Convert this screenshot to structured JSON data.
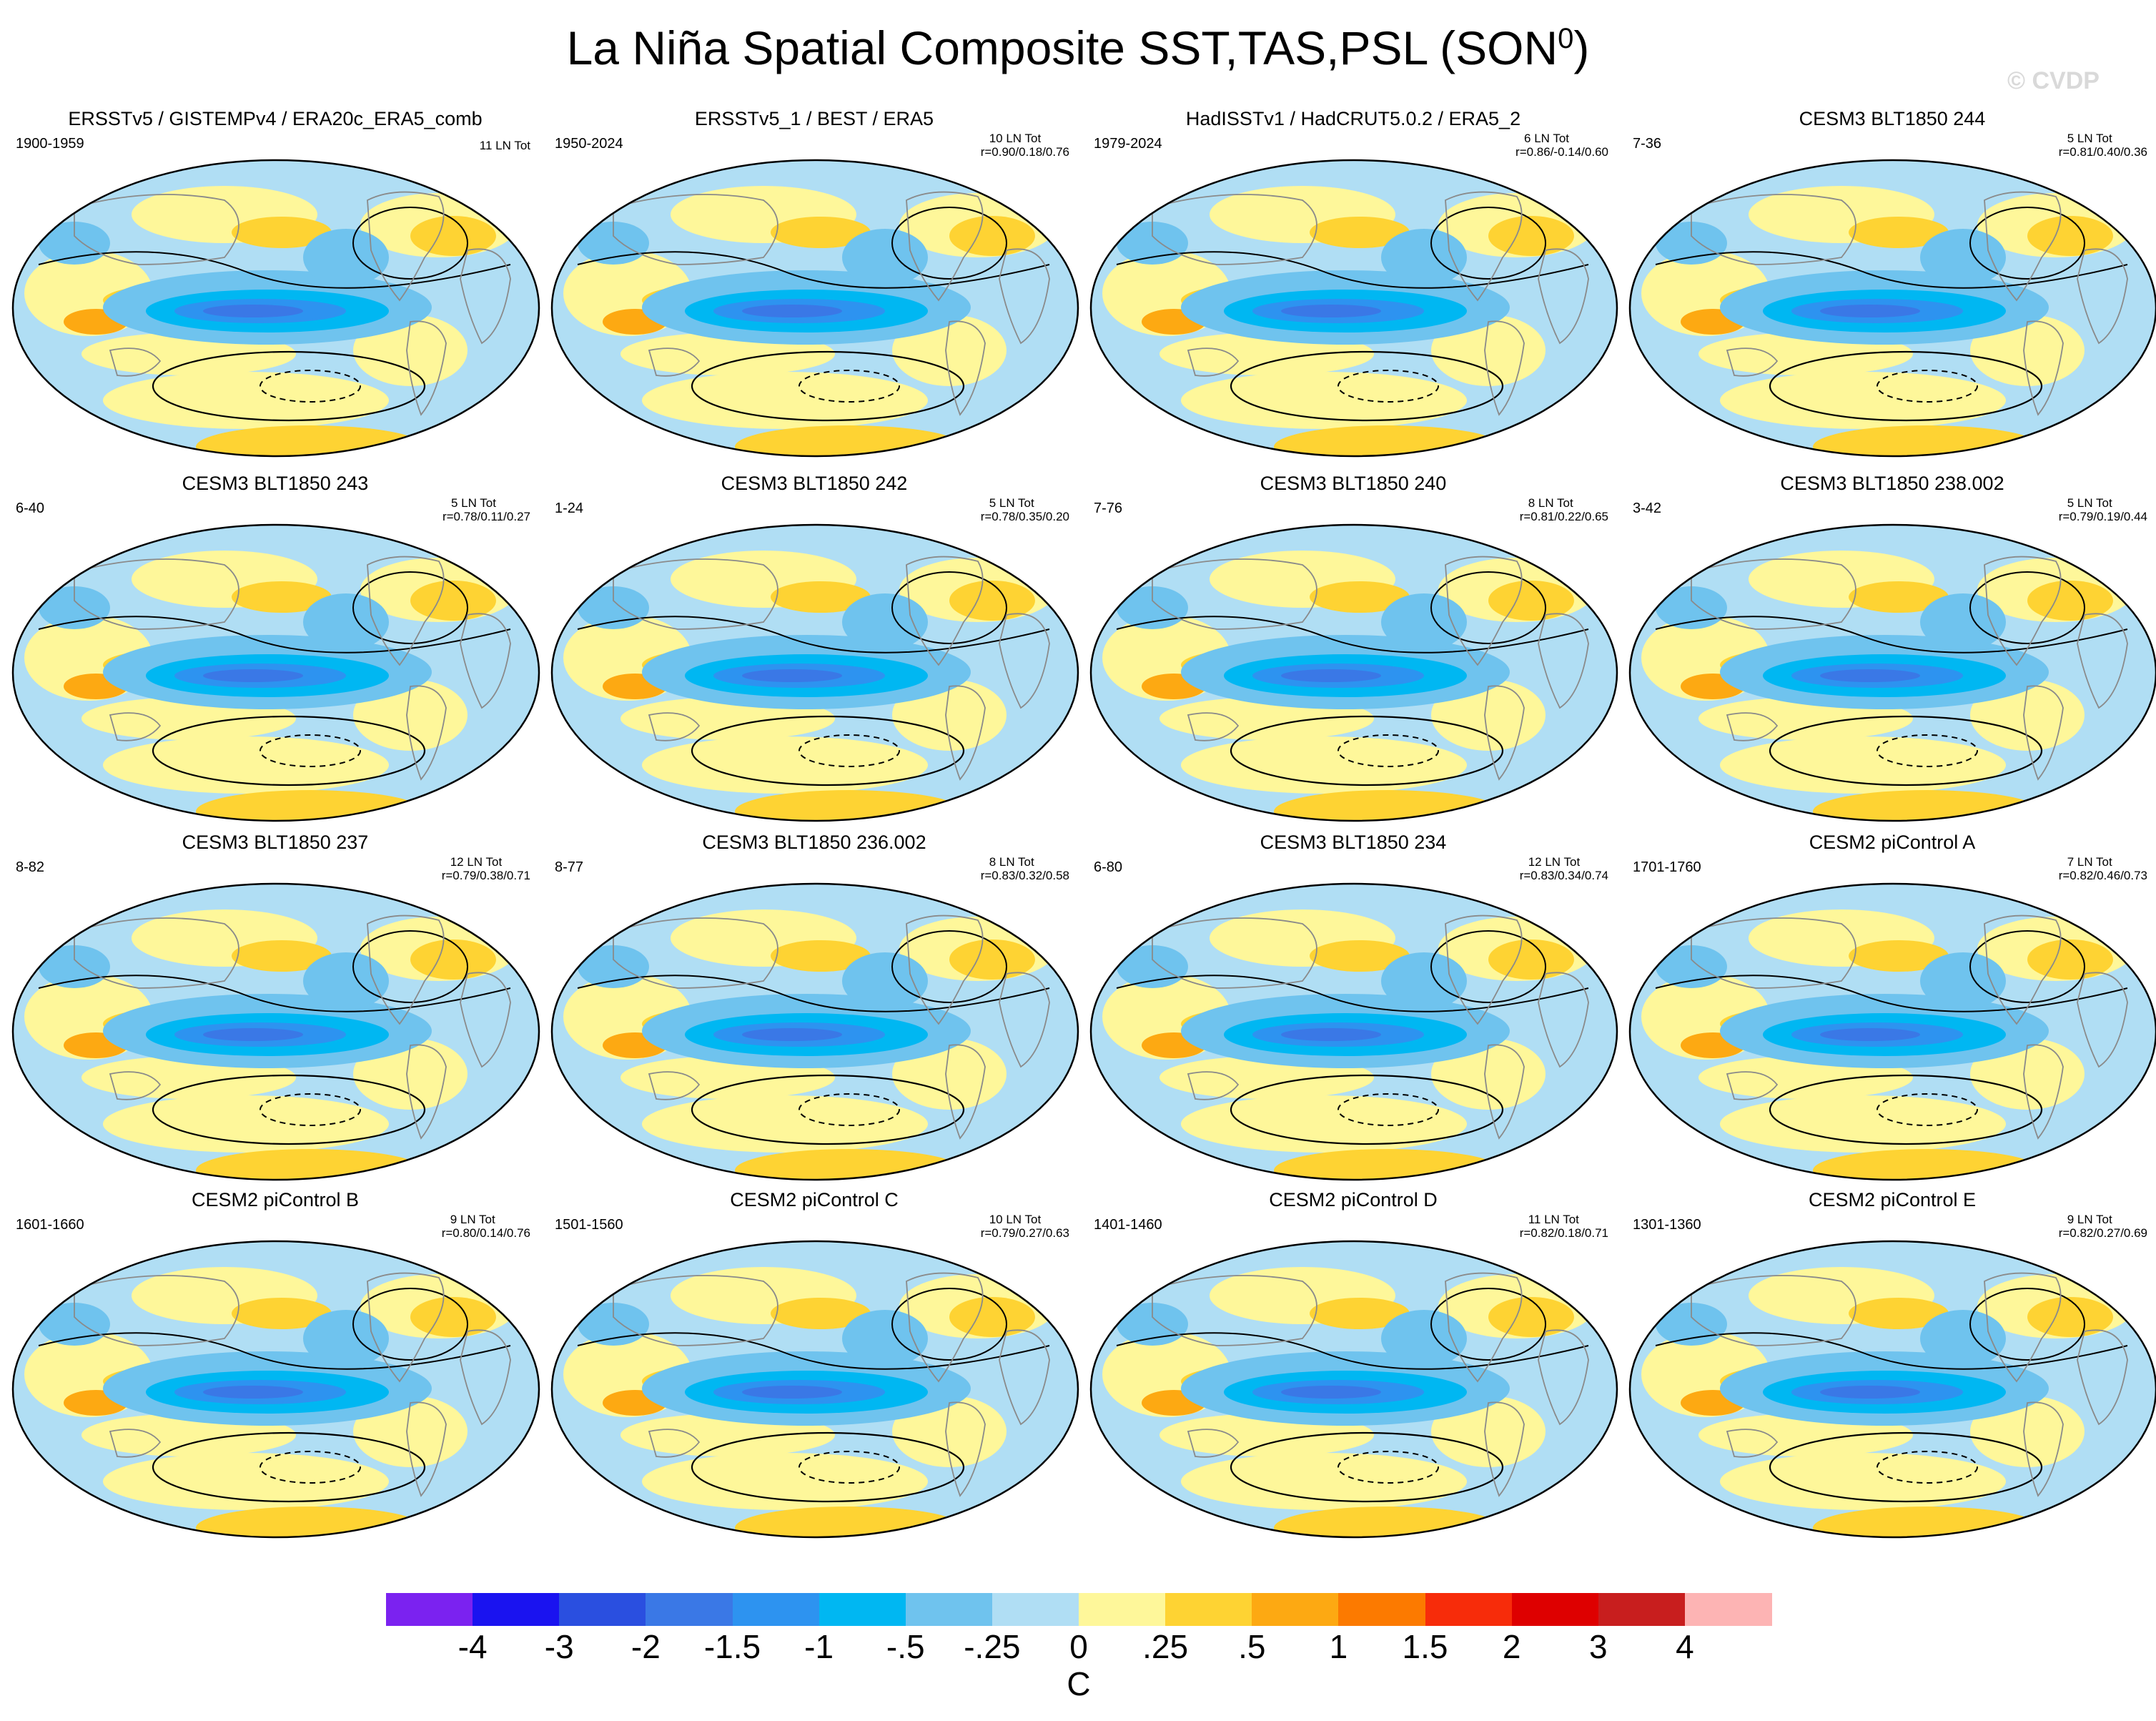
{
  "title_text": "La Niña Spatial Composite SST,TAS,PSL (SON",
  "title_sup": "0",
  "title_close": ")",
  "watermark": "© CVDP",
  "panels": [
    {
      "title": "ERSSTv5 / GISTEMPv4 / ERA20c_ERA5_comb",
      "years": "1900-1959",
      "count": "11 LN Tot",
      "corr": ""
    },
    {
      "title": "ERSSTv5_1 / BEST / ERA5",
      "years": "1950-2024",
      "count": "10 LN Tot",
      "corr": "r=0.90/0.18/0.76"
    },
    {
      "title": "HadISSTv1 / HadCRUT5.0.2 / ERA5_2",
      "years": "1979-2024",
      "count": "6 LN Tot",
      "corr": "r=0.86/-0.14/0.60"
    },
    {
      "title": "CESM3 BLT1850 244",
      "years": "7-36",
      "count": "5 LN Tot",
      "corr": "r=0.81/0.40/0.36"
    },
    {
      "title": "CESM3 BLT1850 243",
      "years": "6-40",
      "count": "5 LN Tot",
      "corr": "r=0.78/0.11/0.27"
    },
    {
      "title": "CESM3 BLT1850 242",
      "years": "1-24",
      "count": "5 LN Tot",
      "corr": "r=0.78/0.35/0.20"
    },
    {
      "title": "CESM3 BLT1850 240",
      "years": "7-76",
      "count": "8 LN Tot",
      "corr": "r=0.81/0.22/0.65"
    },
    {
      "title": "CESM3 BLT1850 238.002",
      "years": "3-42",
      "count": "5 LN Tot",
      "corr": "r=0.79/0.19/0.44"
    },
    {
      "title": "CESM3 BLT1850 237",
      "years": "8-82",
      "count": "12 LN Tot",
      "corr": "r=0.79/0.38/0.71"
    },
    {
      "title": "CESM3 BLT1850 236.002",
      "years": "8-77",
      "count": "8 LN Tot",
      "corr": "r=0.83/0.32/0.58"
    },
    {
      "title": "CESM3 BLT1850 234",
      "years": "6-80",
      "count": "12 LN Tot",
      "corr": "r=0.83/0.34/0.74"
    },
    {
      "title": "CESM2 piControl A",
      "years": "1701-1760",
      "count": "7 LN Tot",
      "corr": "r=0.82/0.46/0.73"
    },
    {
      "title": "CESM2 piControl B",
      "years": "1601-1660",
      "count": "9 LN Tot",
      "corr": "r=0.80/0.14/0.76"
    },
    {
      "title": "CESM2 piControl C",
      "years": "1501-1560",
      "count": "10 LN Tot",
      "corr": "r=0.79/0.27/0.63"
    },
    {
      "title": "CESM2 piControl D",
      "years": "1401-1460",
      "count": "11 LN Tot",
      "corr": "r=0.82/0.18/0.71"
    },
    {
      "title": "CESM2 piControl E",
      "years": "1301-1360",
      "count": "9 LN Tot",
      "corr": "r=0.82/0.27/0.69"
    }
  ],
  "colorbar": {
    "colors": [
      "#7b22f0",
      "#1a13f0",
      "#2a4fe0",
      "#3a78e6",
      "#2d93f0",
      "#00b7f2",
      "#6fc3ee",
      "#b0def4",
      "#fef79a",
      "#fed333",
      "#fda912",
      "#fc7a00",
      "#f72c0a",
      "#de0000",
      "#c81e1e",
      "#fdb4b4"
    ],
    "labels": [
      "-4",
      "-3",
      "-2",
      "-1.5",
      "-1",
      "-.5",
      "-.25",
      "0",
      ".25",
      ".5",
      "1",
      "1.5",
      "2",
      "3",
      "4"
    ],
    "unit": "C"
  },
  "chart_data": {
    "type": "heatmap",
    "title": "La Niña Spatial Composite SST,TAS,PSL (SON0)",
    "variables": [
      "SST",
      "TAS",
      "PSL"
    ],
    "season": "SON",
    "colorbar_units": "C",
    "colorbar_levels": [
      -4,
      -3,
      -2,
      -1.5,
      -1,
      -0.5,
      -0.25,
      0,
      0.25,
      0.5,
      1,
      1.5,
      2,
      3,
      4
    ],
    "layout": "4x4 panel grid",
    "panels": [
      {
        "title": "ERSSTv5 / GISTEMPv4 / ERA20c_ERA5_comb",
        "years": "1900-1959",
        "ln_events": 11
      },
      {
        "title": "ERSSTv5_1 / BEST / ERA5",
        "years": "1950-2024",
        "ln_events": 10,
        "r": [
          0.9,
          0.18,
          0.76
        ]
      },
      {
        "title": "HadISSTv1 / HadCRUT5.0.2 / ERA5_2",
        "years": "1979-2024",
        "ln_events": 6,
        "r": [
          0.86,
          -0.14,
          0.6
        ]
      },
      {
        "title": "CESM3 BLT1850 244",
        "years": "7-36",
        "ln_events": 5,
        "r": [
          0.81,
          0.4,
          0.36
        ]
      },
      {
        "title": "CESM3 BLT1850 243",
        "years": "6-40",
        "ln_events": 5,
        "r": [
          0.78,
          0.11,
          0.27
        ]
      },
      {
        "title": "CESM3 BLT1850 242",
        "years": "1-24",
        "ln_events": 5,
        "r": [
          0.78,
          0.35,
          0.2
        ]
      },
      {
        "title": "CESM3 BLT1850 240",
        "years": "7-76",
        "ln_events": 8,
        "r": [
          0.81,
          0.22,
          0.65
        ]
      },
      {
        "title": "CESM3 BLT1850 238.002",
        "years": "3-42",
        "ln_events": 5,
        "r": [
          0.79,
          0.19,
          0.44
        ]
      },
      {
        "title": "CESM3 BLT1850 237",
        "years": "8-82",
        "ln_events": 12,
        "r": [
          0.79,
          0.38,
          0.71
        ]
      },
      {
        "title": "CESM3 BLT1850 236.002",
        "years": "8-77",
        "ln_events": 8,
        "r": [
          0.83,
          0.32,
          0.58
        ]
      },
      {
        "title": "CESM3 BLT1850 234",
        "years": "6-80",
        "ln_events": 12,
        "r": [
          0.83,
          0.34,
          0.74
        ]
      },
      {
        "title": "CESM2 piControl A",
        "years": "1701-1760",
        "ln_events": 7,
        "r": [
          0.82,
          0.46,
          0.73
        ]
      },
      {
        "title": "CESM2 piControl B",
        "years": "1601-1660",
        "ln_events": 9,
        "r": [
          0.8,
          0.14,
          0.76
        ]
      },
      {
        "title": "CESM2 piControl C",
        "years": "1501-1560",
        "ln_events": 10,
        "r": [
          0.79,
          0.27,
          0.63
        ]
      },
      {
        "title": "CESM2 piControl D",
        "years": "1401-1460",
        "ln_events": 11,
        "r": [
          0.82,
          0.18,
          0.71
        ]
      },
      {
        "title": "CESM2 piControl E",
        "years": "1301-1360",
        "ln_events": 9,
        "r": [
          0.82,
          0.27,
          0.69
        ]
      }
    ]
  }
}
